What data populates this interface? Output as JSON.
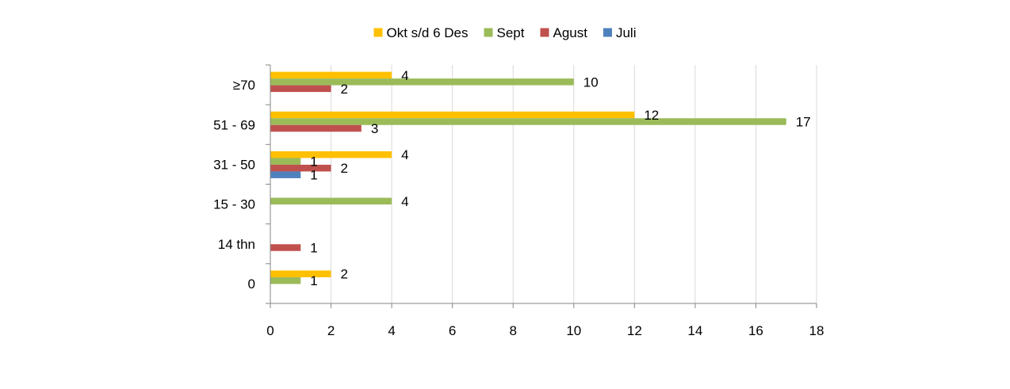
{
  "chart_data": {
    "type": "bar",
    "orientation": "horizontal",
    "title": "",
    "xlabel": "",
    "ylabel": "",
    "categories": [
      "≥70",
      "51 - 69",
      "31 - 50",
      "15 - 30",
      "14 thn",
      "0"
    ],
    "series": [
      {
        "name": "Okt s/d 6 Des",
        "color": "#FFC000",
        "values": [
          4,
          12,
          4,
          0,
          0,
          2
        ]
      },
      {
        "name": "Sept",
        "color": "#9BBB59",
        "values": [
          10,
          17,
          1,
          4,
          0,
          1
        ]
      },
      {
        "name": "Agust",
        "color": "#C0504D",
        "values": [
          2,
          3,
          2,
          0,
          1,
          0
        ]
      },
      {
        "name": "Juli",
        "color": "#4F81BD",
        "values": [
          0,
          0,
          1,
          0,
          0,
          0
        ]
      }
    ],
    "xlim": [
      0,
      18
    ],
    "xticks": [
      "0",
      "2",
      "4",
      "6",
      "8",
      "10",
      "12",
      "14",
      "16",
      "18"
    ],
    "grid": "vertical",
    "legend": "top-center",
    "data_labels": true
  }
}
